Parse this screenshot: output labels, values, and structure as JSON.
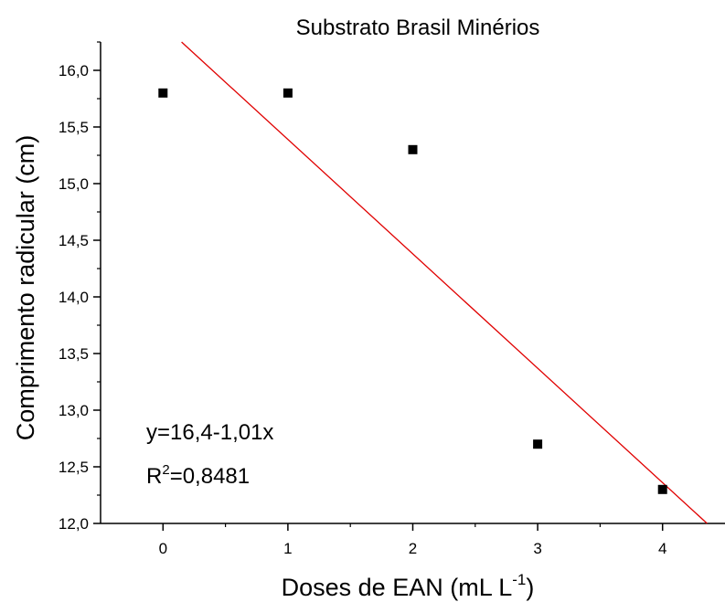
{
  "chart_data": {
    "type": "scatter",
    "title": "Substrato Brasil Minérios",
    "xlabel": {
      "main": "Doses de EAN (mL L",
      "sup": "-1",
      "close": ")"
    },
    "ylabel": "Comprimento radicular (cm)",
    "xlim": [
      -0.5,
      4.5
    ],
    "ylim": [
      12.0,
      16.25
    ],
    "x_ticks": [
      0,
      1,
      2,
      3,
      4
    ],
    "x_tick_labels": [
      "0",
      "1",
      "2",
      "3",
      "4"
    ],
    "y_ticks": [
      12.0,
      12.5,
      13.0,
      13.5,
      14.0,
      14.5,
      15.0,
      15.5,
      16.0
    ],
    "y_tick_labels": [
      "12,0",
      "12,5",
      "13,0",
      "13,5",
      "14,0",
      "14,5",
      "15,0",
      "15,5",
      "16,0"
    ],
    "points": [
      {
        "x": 0,
        "y": 15.8
      },
      {
        "x": 1,
        "y": 15.8
      },
      {
        "x": 2,
        "y": 15.3
      },
      {
        "x": 3,
        "y": 12.7
      },
      {
        "x": 4,
        "y": 12.3
      }
    ],
    "fit": {
      "intercept": 16.4,
      "slope": -1.01
    },
    "annotations": {
      "equation": "y=16,4-1,01x",
      "r2_prefix": "R",
      "r2_sup": "2",
      "r2_value": "=0,8481"
    },
    "colors": {
      "points": "#000000",
      "fit": "#e00000",
      "axes": "#000000"
    },
    "grid": false,
    "legend": "none"
  }
}
